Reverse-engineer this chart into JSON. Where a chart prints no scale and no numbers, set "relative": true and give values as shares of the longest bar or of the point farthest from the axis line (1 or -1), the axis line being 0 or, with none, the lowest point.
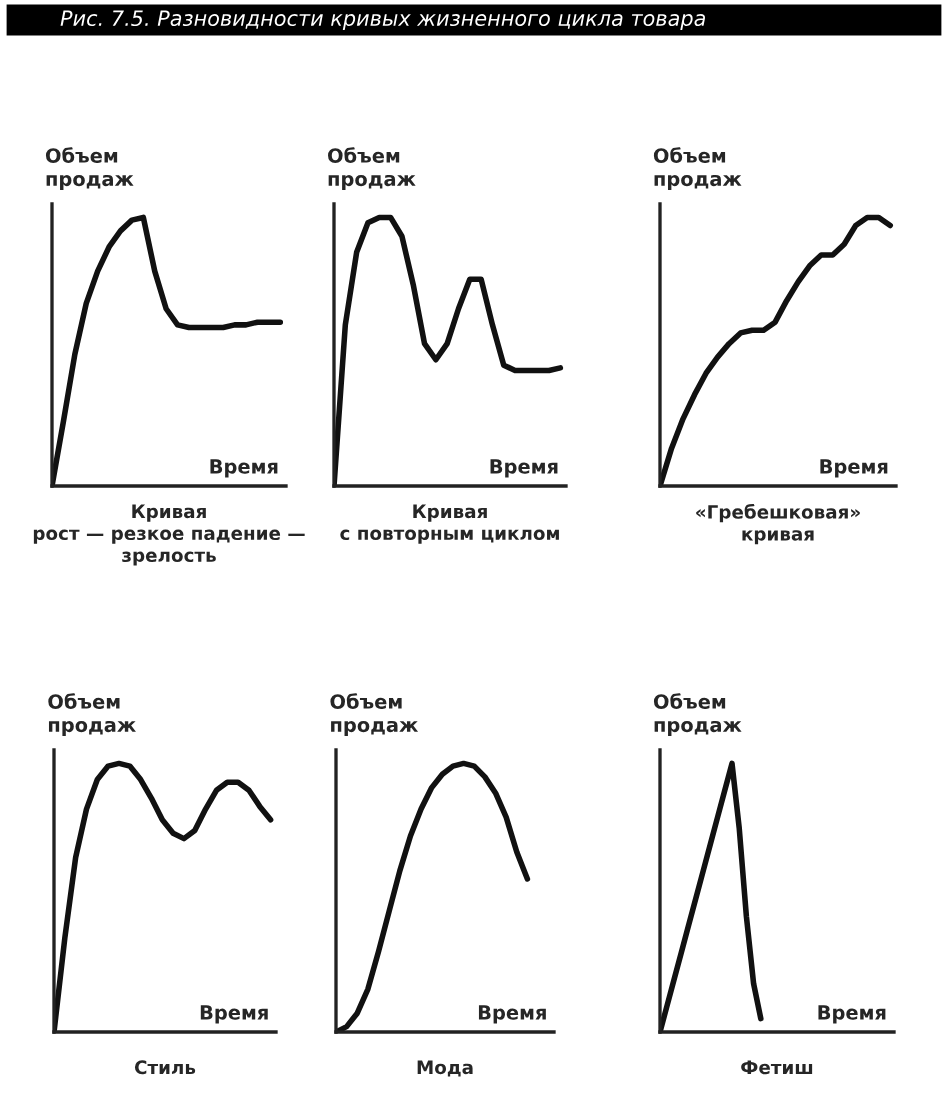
{
  "chart_data": [
    {
      "type": "line",
      "relative": true,
      "title": "Рис. 7.5. Разновидности кривых жизненного цикла товара",
      "ylabel": "Объем\nпродаж",
      "xlabel": "Время",
      "annotations": [
        "Кривая\nрост — резкое падение —\nзрелость"
      ],
      "categories": [
        null,
        null,
        null,
        null,
        null,
        null,
        null,
        null,
        null,
        null,
        null,
        null,
        null,
        null,
        null,
        null,
        null,
        null,
        null,
        null,
        null
      ],
      "series": [
        {
          "color": "#111111",
          "values": [
            0,
            0.24,
            0.49,
            0.68,
            0.8,
            0.89,
            0.95,
            0.99,
            1.0,
            0.8,
            0.66,
            0.6,
            0.59,
            0.59,
            0.59,
            0.59,
            0.6,
            0.6,
            0.61,
            0.61,
            0.61
          ]
        }
      ]
    },
    {
      "type": "line",
      "relative": true,
      "ylabel": "Объем\nпродаж",
      "xlabel": "Время",
      "annotations": [
        "Кривая\nс повторным циклом"
      ],
      "categories": [
        null,
        null,
        null,
        null,
        null,
        null,
        null,
        null,
        null,
        null,
        null,
        null,
        null,
        null,
        null,
        null,
        null,
        null,
        null,
        null,
        null
      ],
      "series": [
        {
          "color": "#111111",
          "values": [
            0,
            0.6,
            0.87,
            0.98,
            1.0,
            1.0,
            0.93,
            0.75,
            0.53,
            0.47,
            0.53,
            0.66,
            0.77,
            0.77,
            0.6,
            0.45,
            0.43,
            0.43,
            0.43,
            0.43,
            0.44
          ]
        }
      ]
    },
    {
      "type": "line",
      "relative": true,
      "ylabel": "Объем\nпродаж",
      "xlabel": "Время",
      "annotations": [
        "«Гребешковая»\nкривая"
      ],
      "categories": [
        null,
        null,
        null,
        null,
        null,
        null,
        null,
        null,
        null,
        null,
        null,
        null,
        null,
        null,
        null,
        null,
        null,
        null,
        null,
        null,
        null
      ],
      "series": [
        {
          "color": "#111111",
          "values": [
            0,
            0.14,
            0.25,
            0.34,
            0.42,
            0.48,
            0.53,
            0.57,
            0.58,
            0.58,
            0.61,
            0.69,
            0.76,
            0.82,
            0.86,
            0.86,
            0.9,
            0.97,
            1.0,
            1.0,
            0.97
          ]
        }
      ]
    },
    {
      "type": "line",
      "relative": true,
      "ylabel": "Объем\nпродаж",
      "xlabel": "Время",
      "annotations": [
        "Стиль"
      ],
      "categories": [
        null,
        null,
        null,
        null,
        null,
        null,
        null,
        null,
        null,
        null,
        null,
        null,
        null,
        null,
        null,
        null,
        null,
        null,
        null,
        null,
        null
      ],
      "series": [
        {
          "color": "#111111",
          "values": [
            0,
            0.35,
            0.65,
            0.83,
            0.94,
            0.99,
            1.0,
            0.99,
            0.94,
            0.87,
            0.79,
            0.74,
            0.72,
            0.75,
            0.83,
            0.9,
            0.93,
            0.93,
            0.9,
            0.84,
            0.79
          ]
        }
      ]
    },
    {
      "type": "line",
      "relative": true,
      "ylabel": "Объем\nпродаж",
      "xlabel": "Время",
      "annotations": [
        "Мода"
      ],
      "categories": [
        null,
        null,
        null,
        null,
        null,
        null,
        null,
        null,
        null,
        null,
        null,
        null,
        null,
        null,
        null,
        null,
        null,
        null,
        null,
        null,
        null
      ],
      "series": [
        {
          "color": "#111111",
          "values": [
            0,
            0.02,
            0.07,
            0.16,
            0.3,
            0.45,
            0.6,
            0.73,
            0.83,
            0.91,
            0.96,
            0.99,
            1.0,
            0.99,
            0.95,
            0.89,
            0.8,
            0.67,
            0.57,
            null,
            null
          ]
        }
      ]
    },
    {
      "type": "line",
      "relative": true,
      "ylabel": "Объем\nпродаж",
      "xlabel": "Время",
      "annotations": [
        "Фетиш"
      ],
      "categories": [
        null,
        null,
        null,
        null,
        null,
        null,
        null,
        null,
        null,
        null,
        null,
        null,
        null,
        null,
        null,
        null,
        null,
        null,
        null,
        null,
        null,
        null,
        null,
        null,
        null,
        null,
        null,
        null,
        null,
        null,
        null,
        null,
        null
      ],
      "series": [
        {
          "color": "#111111",
          "values": [
            0,
            0.1,
            0.2,
            0.3,
            0.4,
            0.5,
            0.6,
            0.7,
            0.8,
            0.9,
            1.0,
            0.76,
            0.43,
            0.18,
            0.05,
            null,
            null,
            null,
            null,
            null,
            null,
            null,
            null,
            null,
            null,
            null,
            null,
            null,
            null,
            null,
            null,
            null,
            null
          ]
        }
      ]
    }
  ]
}
